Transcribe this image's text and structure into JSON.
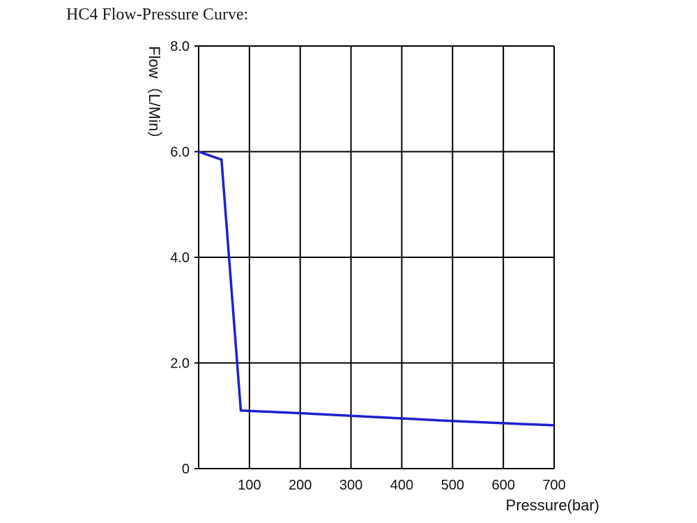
{
  "title": "HC4 Flow-Pressure Curve:",
  "chart_data": {
    "type": "line",
    "xlabel": "Pressure(bar)",
    "ylabel": "Flow（L/Min）",
    "xlim": [
      0,
      700
    ],
    "ylim": [
      0,
      8
    ],
    "grid": true,
    "x_ticks": [
      {
        "value": 100,
        "label": "100"
      },
      {
        "value": 200,
        "label": "200"
      },
      {
        "value": 300,
        "label": "300"
      },
      {
        "value": 400,
        "label": "400"
      },
      {
        "value": 500,
        "label": "500"
      },
      {
        "value": 600,
        "label": "600"
      },
      {
        "value": 700,
        "label": "700"
      }
    ],
    "y_ticks": [
      {
        "value": 0,
        "label": "0"
      },
      {
        "value": 2,
        "label": "2.0"
      },
      {
        "value": 4,
        "label": "4.0"
      },
      {
        "value": 6,
        "label": "6.0"
      },
      {
        "value": 8,
        "label": "8.0"
      }
    ],
    "y_gridlines": [
      0,
      2,
      4,
      6,
      8
    ],
    "x_gridlines": [
      0,
      100,
      200,
      300,
      400,
      500,
      600,
      700
    ],
    "series": [
      {
        "color": "#1f1fcc",
        "points": [
          [
            0,
            6.0
          ],
          [
            45,
            5.85
          ],
          [
            83,
            1.1
          ],
          [
            200,
            1.05
          ],
          [
            300,
            1.0
          ],
          [
            400,
            0.95
          ],
          [
            500,
            0.9
          ],
          [
            600,
            0.86
          ],
          [
            700,
            0.82
          ]
        ]
      }
    ],
    "colors": {
      "line": "#1f1fcc",
      "grid": "#000000",
      "text": "#111111"
    }
  }
}
